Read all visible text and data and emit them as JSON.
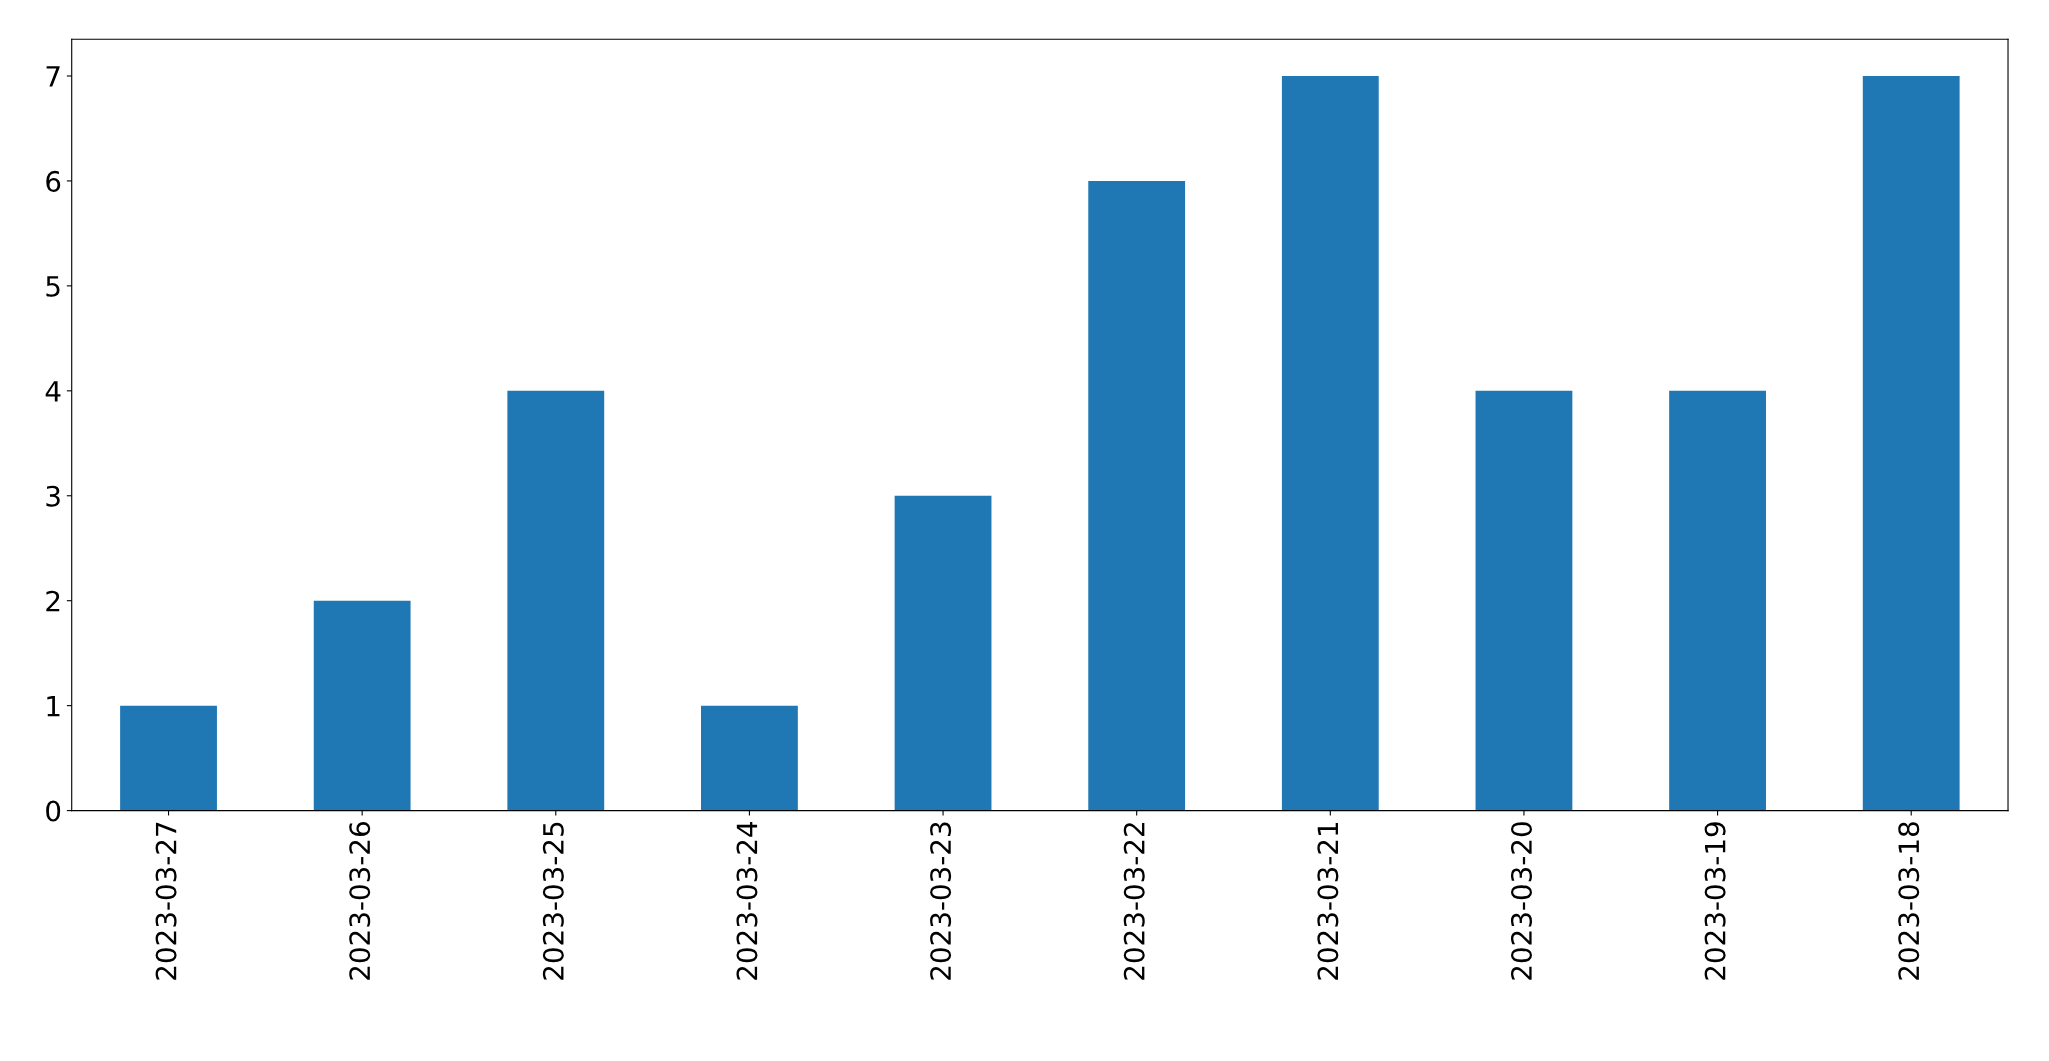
{
  "chart_data": {
    "type": "bar",
    "categories": [
      "2023-03-27",
      "2023-03-26",
      "2023-03-25",
      "2023-03-24",
      "2023-03-23",
      "2023-03-22",
      "2023-03-21",
      "2023-03-20",
      "2023-03-19",
      "2023-03-18"
    ],
    "values": [
      1,
      2,
      4,
      1,
      3,
      6,
      7,
      4,
      4,
      7
    ],
    "color": "#1f77b4",
    "ylim": [
      0,
      7.35
    ],
    "yticks": [
      0,
      1,
      2,
      3,
      4,
      5,
      6,
      7
    ],
    "grid": false,
    "legend": false
  }
}
